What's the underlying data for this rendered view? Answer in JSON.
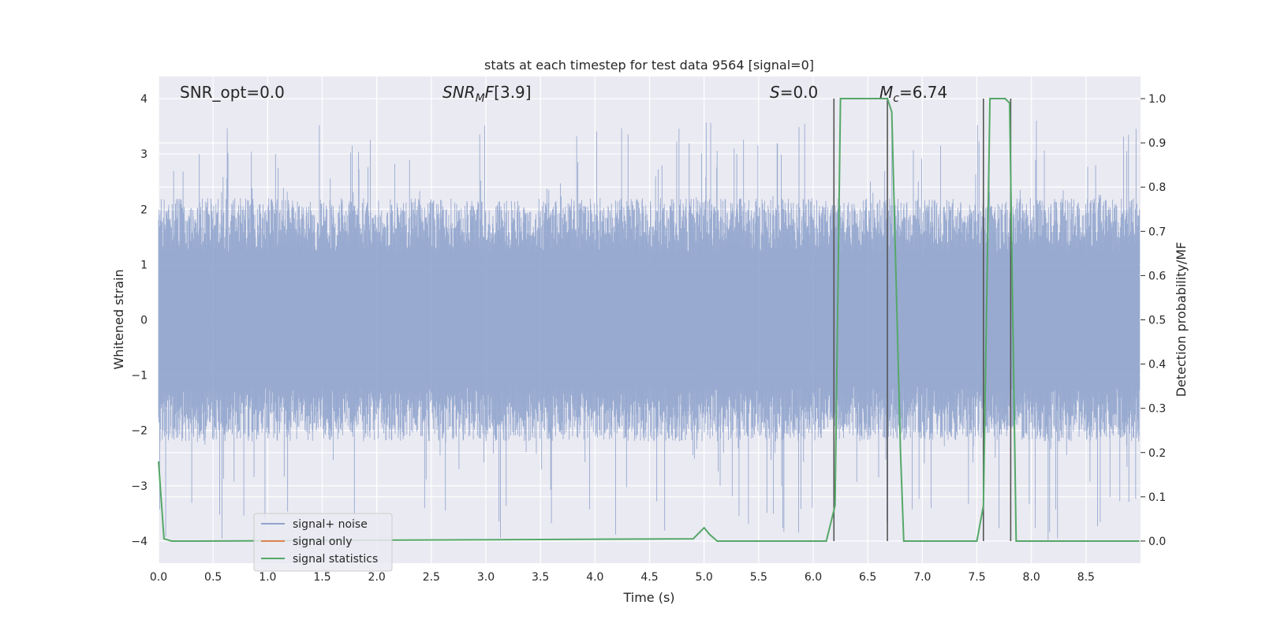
{
  "chart_data": {
    "type": "line",
    "title": "stats at each timestep for test data 9564 [signal=0]",
    "xlabel": "Time (s)",
    "ylabel_left": "Whitened strain",
    "ylabel_right": "Detection probability/MF",
    "xlim": [
      0.0,
      9.0
    ],
    "ylim_left": [
      -4.4,
      4.4
    ],
    "ylim_right": [
      -0.05,
      1.05
    ],
    "x_ticks": [
      "0.0",
      "0.5",
      "1.0",
      "1.5",
      "2.0",
      "2.5",
      "3.0",
      "3.5",
      "4.0",
      "4.5",
      "5.0",
      "5.5",
      "6.0",
      "6.5",
      "7.0",
      "7.5",
      "8.0",
      "8.5"
    ],
    "y_ticks_left": [
      "4",
      "3",
      "2",
      "1",
      "0",
      "−1",
      "−2",
      "−3",
      "−4"
    ],
    "y_ticks_right": [
      "1.0",
      "0.9",
      "0.8",
      "0.7",
      "0.6",
      "0.5",
      "0.4",
      "0.3",
      "0.2",
      "0.1",
      "0.0"
    ],
    "grid": true,
    "legend_placement": "lower-left",
    "annotations": {
      "snr_opt": "SNR_opt=0.0",
      "snr_mf": "[3.9]",
      "s_value": "=0.0",
      "mc_value": "=6.74"
    },
    "series": [
      {
        "name": "signal+ noise",
        "color": "#8fa3cc",
        "description_stats": {
          "typical_envelope": [
            -2.2,
            2.2
          ],
          "max": 3.6,
          "min": -4.0
        }
      },
      {
        "name": "signal only",
        "color": "#dd8452",
        "values": []
      },
      {
        "name": "signal statistics",
        "color": "#55a868",
        "x": [
          0.0,
          0.05,
          0.12,
          0.3,
          4.9,
          5.0,
          5.05,
          5.12,
          6.12,
          6.2,
          6.25,
          6.68,
          6.72,
          6.8,
          6.83,
          7.5,
          7.56,
          7.62,
          7.76,
          7.8,
          7.86,
          7.95,
          8.99
        ],
        "values": [
          0.18,
          0.005,
          0.0,
          0.0,
          0.005,
          0.03,
          0.015,
          0.0,
          0.0,
          0.08,
          1.0,
          1.0,
          0.97,
          0.2,
          0.0,
          0.0,
          0.08,
          1.0,
          1.0,
          0.99,
          0.0,
          0.0,
          0.0
        ]
      }
    ],
    "vertical_lines_x": [
      6.19,
      6.68,
      7.56,
      7.81
    ]
  },
  "colors": {
    "plot_background": "#eaeaf2",
    "grid": "#ffffff",
    "vertical_line": "#555555"
  }
}
